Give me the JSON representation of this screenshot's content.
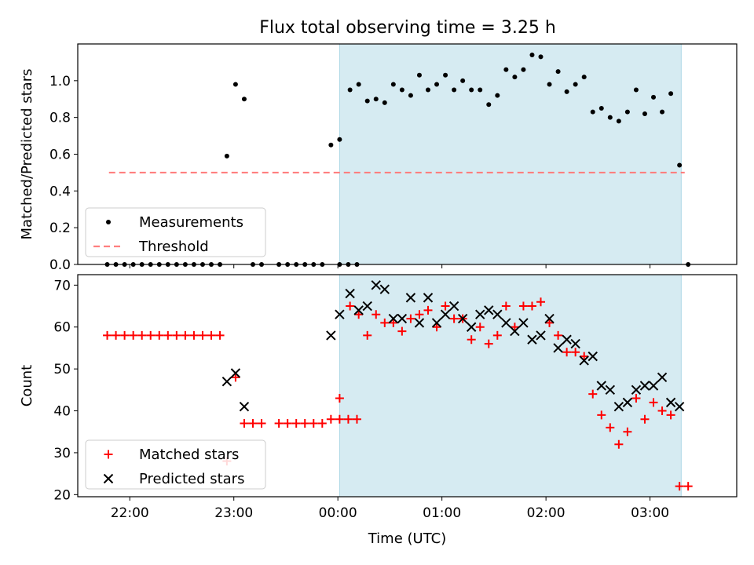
{
  "chart_data": [
    {
      "type": "scatter",
      "title": "Flux total observing time = 3.25 h",
      "ylabel": "Matched/Predicted stars",
      "xlabel": "",
      "xlim": [
        "21:30",
        "03:50"
      ],
      "ylim": [
        0,
        1.2
      ],
      "yticks": [
        "0.0",
        "0.2",
        "0.4",
        "0.6",
        "0.8",
        "1.0"
      ],
      "xticks": [
        "22:00",
        "23:00",
        "00:00",
        "01:00",
        "02:00",
        "03:00"
      ],
      "grid": false,
      "legend": "lower-left",
      "shaded_interval": [
        "00:01",
        "03:18"
      ],
      "shaded_color": "#add8e6",
      "series": [
        {
          "name": "Measurements",
          "marker": "dot",
          "color": "#000000",
          "points": [
            [
              "21:47",
              0
            ],
            [
              "21:52",
              0
            ],
            [
              "21:57",
              0
            ],
            [
              "22:02",
              0
            ],
            [
              "22:07",
              0
            ],
            [
              "22:12",
              0
            ],
            [
              "22:17",
              0
            ],
            [
              "22:22",
              0
            ],
            [
              "22:27",
              0
            ],
            [
              "22:32",
              0
            ],
            [
              "22:37",
              0
            ],
            [
              "22:42",
              0
            ],
            [
              "22:47",
              0
            ],
            [
              "22:52",
              0
            ],
            [
              "22:56",
              0.59
            ],
            [
              "23:01",
              0.98
            ],
            [
              "23:06",
              0.9
            ],
            [
              "23:11",
              0
            ],
            [
              "23:16",
              0
            ],
            [
              "23:26",
              0
            ],
            [
              "23:31",
              0
            ],
            [
              "23:36",
              0
            ],
            [
              "23:41",
              0
            ],
            [
              "23:46",
              0
            ],
            [
              "23:51",
              0
            ],
            [
              "23:56",
              0.65
            ],
            [
              "00:01",
              0
            ],
            [
              "00:06",
              0
            ],
            [
              "00:11",
              0
            ],
            [
              "00:01",
              0.68
            ],
            [
              "00:07",
              0.95
            ],
            [
              "00:12",
              0.98
            ],
            [
              "00:17",
              0.89
            ],
            [
              "00:22",
              0.9
            ],
            [
              "00:27",
              0.88
            ],
            [
              "00:32",
              0.98
            ],
            [
              "00:37",
              0.95
            ],
            [
              "00:42",
              0.92
            ],
            [
              "00:47",
              1.03
            ],
            [
              "00:52",
              0.95
            ],
            [
              "00:57",
              0.98
            ],
            [
              "01:02",
              1.03
            ],
            [
              "01:07",
              0.95
            ],
            [
              "01:12",
              1.0
            ],
            [
              "01:17",
              0.95
            ],
            [
              "01:22",
              0.95
            ],
            [
              "01:27",
              0.87
            ],
            [
              "01:32",
              0.92
            ],
            [
              "01:37",
              1.06
            ],
            [
              "01:42",
              1.02
            ],
            [
              "01:47",
              1.06
            ],
            [
              "01:52",
              1.14
            ],
            [
              "01:57",
              1.13
            ],
            [
              "02:02",
              0.98
            ],
            [
              "02:07",
              1.05
            ],
            [
              "02:12",
              0.94
            ],
            [
              "02:17",
              0.98
            ],
            [
              "02:22",
              1.02
            ],
            [
              "02:27",
              0.83
            ],
            [
              "02:32",
              0.85
            ],
            [
              "02:37",
              0.8
            ],
            [
              "02:42",
              0.78
            ],
            [
              "02:47",
              0.83
            ],
            [
              "02:52",
              0.95
            ],
            [
              "02:57",
              0.82
            ],
            [
              "03:02",
              0.91
            ],
            [
              "03:07",
              0.83
            ],
            [
              "03:12",
              0.93
            ],
            [
              "03:17",
              0.54
            ],
            [
              "03:22",
              0
            ]
          ]
        },
        {
          "name": "Threshold",
          "style": "dashed",
          "color": "#ff7f7f",
          "points": [
            [
              "21:48",
              0.5
            ],
            [
              "03:20",
              0.5
            ]
          ]
        }
      ]
    },
    {
      "type": "scatter",
      "title": "",
      "ylabel": "Count",
      "xlabel": "Time (UTC)",
      "xlim": [
        "21:30",
        "03:50"
      ],
      "ylim": [
        19.5,
        72.5
      ],
      "yticks": [
        "20",
        "30",
        "40",
        "50",
        "60",
        "70"
      ],
      "xticks": [
        "22:00",
        "23:00",
        "00:00",
        "01:00",
        "02:00",
        "03:00"
      ],
      "grid": false,
      "legend": "lower-left",
      "shaded_interval": [
        "00:01",
        "03:18"
      ],
      "shaded_color": "#add8e6",
      "series": [
        {
          "name": "Matched stars",
          "marker": "plus",
          "color": "#ff0000",
          "points": [
            [
              "21:47",
              58
            ],
            [
              "21:52",
              58
            ],
            [
              "21:57",
              58
            ],
            [
              "22:02",
              58
            ],
            [
              "22:07",
              58
            ],
            [
              "22:12",
              58
            ],
            [
              "22:17",
              58
            ],
            [
              "22:22",
              58
            ],
            [
              "22:27",
              58
            ],
            [
              "22:32",
              58
            ],
            [
              "22:37",
              58
            ],
            [
              "22:42",
              58
            ],
            [
              "22:47",
              58
            ],
            [
              "22:52",
              58
            ],
            [
              "22:56",
              28
            ],
            [
              "23:01",
              48
            ],
            [
              "23:06",
              37
            ],
            [
              "23:11",
              37
            ],
            [
              "23:16",
              37
            ],
            [
              "23:26",
              37
            ],
            [
              "23:31",
              37
            ],
            [
              "23:36",
              37
            ],
            [
              "23:41",
              37
            ],
            [
              "23:46",
              37
            ],
            [
              "23:51",
              37
            ],
            [
              "23:56",
              38
            ],
            [
              "00:01",
              38
            ],
            [
              "00:06",
              38
            ],
            [
              "00:11",
              38
            ],
            [
              "00:01",
              43
            ],
            [
              "00:07",
              65
            ],
            [
              "00:12",
              63
            ],
            [
              "00:17",
              58
            ],
            [
              "00:22",
              63
            ],
            [
              "00:27",
              61
            ],
            [
              "00:32",
              61
            ],
            [
              "00:37",
              59
            ],
            [
              "00:42",
              62
            ],
            [
              "00:47",
              63
            ],
            [
              "00:52",
              64
            ],
            [
              "00:57",
              60
            ],
            [
              "01:02",
              65
            ],
            [
              "01:07",
              62
            ],
            [
              "01:12",
              62
            ],
            [
              "01:17",
              57
            ],
            [
              "01:22",
              60
            ],
            [
              "01:27",
              56
            ],
            [
              "01:32",
              58
            ],
            [
              "01:37",
              65
            ],
            [
              "01:42",
              60
            ],
            [
              "01:47",
              65
            ],
            [
              "01:52",
              65
            ],
            [
              "01:57",
              66
            ],
            [
              "02:02",
              61
            ],
            [
              "02:07",
              58
            ],
            [
              "02:12",
              54
            ],
            [
              "02:17",
              54
            ],
            [
              "02:22",
              53
            ],
            [
              "02:27",
              44
            ],
            [
              "02:32",
              39
            ],
            [
              "02:37",
              36
            ],
            [
              "02:42",
              32
            ],
            [
              "02:47",
              35
            ],
            [
              "02:52",
              43
            ],
            [
              "02:57",
              38
            ],
            [
              "03:02",
              42
            ],
            [
              "03:07",
              40
            ],
            [
              "03:12",
              39
            ],
            [
              "03:17",
              22
            ],
            [
              "03:22",
              22
            ]
          ]
        },
        {
          "name": "Predicted stars",
          "marker": "x",
          "color": "#000000",
          "points": [
            [
              "22:56",
              47
            ],
            [
              "23:01",
              49
            ],
            [
              "23:06",
              41
            ],
            [
              "23:56",
              58
            ],
            [
              "00:01",
              63
            ],
            [
              "00:07",
              68
            ],
            [
              "00:12",
              64
            ],
            [
              "00:17",
              65
            ],
            [
              "00:22",
              70
            ],
            [
              "00:27",
              69
            ],
            [
              "00:32",
              62
            ],
            [
              "00:37",
              62
            ],
            [
              "00:42",
              67
            ],
            [
              "00:47",
              61
            ],
            [
              "00:52",
              67
            ],
            [
              "00:57",
              61
            ],
            [
              "01:02",
              63
            ],
            [
              "01:07",
              65
            ],
            [
              "01:12",
              62
            ],
            [
              "01:17",
              60
            ],
            [
              "01:22",
              63
            ],
            [
              "01:27",
              64
            ],
            [
              "01:32",
              63
            ],
            [
              "01:37",
              61
            ],
            [
              "01:42",
              59
            ],
            [
              "01:47",
              61
            ],
            [
              "01:52",
              57
            ],
            [
              "01:57",
              58
            ],
            [
              "02:02",
              62
            ],
            [
              "02:07",
              55
            ],
            [
              "02:12",
              57
            ],
            [
              "02:17",
              56
            ],
            [
              "02:22",
              52
            ],
            [
              "02:27",
              53
            ],
            [
              "02:32",
              46
            ],
            [
              "02:37",
              45
            ],
            [
              "02:42",
              41
            ],
            [
              "02:47",
              42
            ],
            [
              "02:52",
              45
            ],
            [
              "02:57",
              46
            ],
            [
              "03:02",
              46
            ],
            [
              "03:07",
              48
            ],
            [
              "03:12",
              42
            ],
            [
              "03:17",
              41
            ]
          ]
        }
      ]
    }
  ]
}
